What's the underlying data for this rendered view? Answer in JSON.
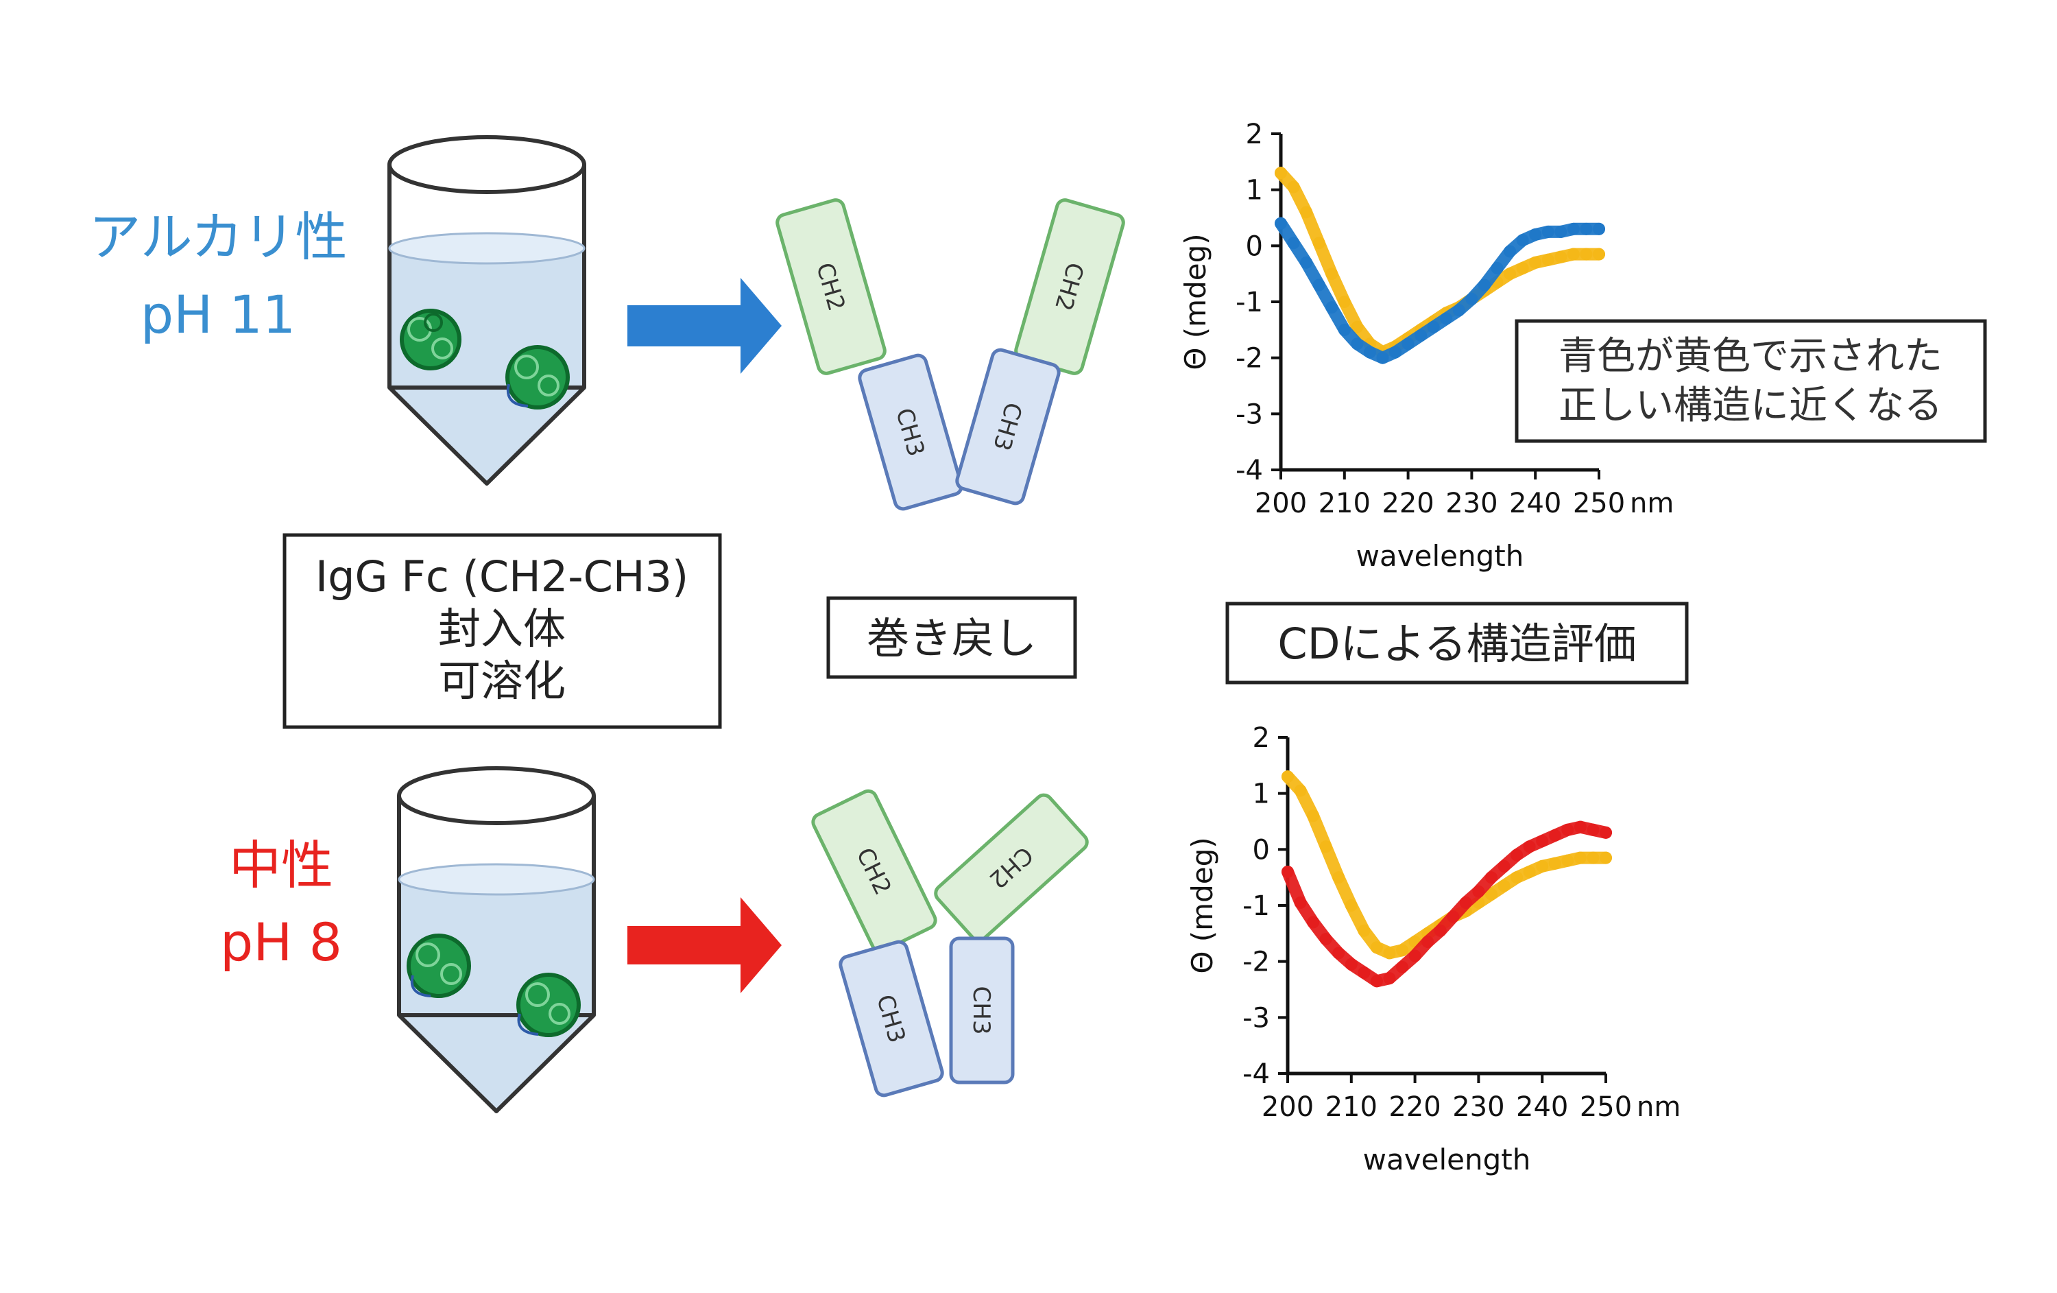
{
  "conditions": {
    "alkaline": {
      "name": "アルカリ性",
      "ph": "pH 11",
      "color": "#3a8fd0"
    },
    "neutral": {
      "name": "中性",
      "ph": "pH 8",
      "color": "#e8231f"
    }
  },
  "boxes": {
    "sample": [
      "IgG Fc (CH2-CH3)",
      "封入体",
      "可溶化"
    ],
    "refold": "巻き戻し",
    "cd_eval": "CDによる構造評価",
    "note": [
      "青色が黄色で示された",
      "正しい構造に近くなる"
    ]
  },
  "domains": {
    "ch2": "CH2",
    "ch3": "CH3"
  },
  "colors": {
    "ch2_fill": "#dff0da",
    "ch2_stroke": "#6bb36b",
    "ch3_fill": "#d9e4f4",
    "ch3_stroke": "#5a7ab8",
    "liquid": "#cfe0f0",
    "aggregate": "#1f9a4a",
    "blue_series": "#1f78c8",
    "yellow_series": "#f5b818",
    "red_series": "#e41d1d"
  },
  "chart_data": [
    {
      "type": "line",
      "xlabel": "wavelength",
      "ylabel": "Θ (mdeg)",
      "x_unit": "nm",
      "xlim": [
        200,
        250
      ],
      "ylim": [
        -4,
        2
      ],
      "xticks": [
        200,
        210,
        220,
        230,
        240,
        250
      ],
      "yticks": [
        2,
        1,
        0,
        -1,
        -2,
        -3,
        -4
      ],
      "series": [
        {
          "color": "#f5b818",
          "x": [
            200,
            202,
            204,
            206,
            208,
            210,
            212,
            214,
            216,
            218,
            220,
            222,
            224,
            226,
            228,
            230,
            232,
            234,
            236,
            238,
            240,
            242,
            244,
            246,
            248,
            250
          ],
          "y": [
            1.3,
            1.05,
            0.6,
            0.05,
            -0.5,
            -1.0,
            -1.45,
            -1.75,
            -1.9,
            -1.8,
            -1.65,
            -1.5,
            -1.35,
            -1.2,
            -1.1,
            -0.95,
            -0.8,
            -0.65,
            -0.5,
            -0.4,
            -0.3,
            -0.25,
            -0.2,
            -0.15,
            -0.15,
            -0.15
          ]
        },
        {
          "color": "#1f78c8",
          "x": [
            200,
            202,
            204,
            206,
            208,
            210,
            212,
            214,
            216,
            218,
            220,
            222,
            224,
            226,
            228,
            230,
            232,
            234,
            236,
            238,
            240,
            242,
            244,
            246,
            248,
            250
          ],
          "y": [
            0.4,
            0.05,
            -0.3,
            -0.7,
            -1.1,
            -1.5,
            -1.75,
            -1.9,
            -2.0,
            -1.9,
            -1.75,
            -1.6,
            -1.45,
            -1.3,
            -1.15,
            -0.95,
            -0.7,
            -0.4,
            -0.1,
            0.1,
            0.2,
            0.25,
            0.25,
            0.3,
            0.3,
            0.3
          ]
        }
      ]
    },
    {
      "type": "line",
      "xlabel": "wavelength",
      "ylabel": "Θ (mdeg)",
      "x_unit": "nm",
      "xlim": [
        200,
        250
      ],
      "ylim": [
        -4,
        2
      ],
      "xticks": [
        200,
        210,
        220,
        230,
        240,
        250
      ],
      "yticks": [
        2,
        1,
        0,
        -1,
        -2,
        -3,
        -4
      ],
      "series": [
        {
          "color": "#f5b818",
          "x": [
            200,
            202,
            204,
            206,
            208,
            210,
            212,
            214,
            216,
            218,
            220,
            222,
            224,
            226,
            228,
            230,
            232,
            234,
            236,
            238,
            240,
            242,
            244,
            246,
            248,
            250
          ],
          "y": [
            1.3,
            1.05,
            0.6,
            0.05,
            -0.5,
            -1.0,
            -1.45,
            -1.75,
            -1.85,
            -1.8,
            -1.65,
            -1.5,
            -1.35,
            -1.2,
            -1.1,
            -0.95,
            -0.8,
            -0.65,
            -0.5,
            -0.4,
            -0.3,
            -0.25,
            -0.2,
            -0.15,
            -0.15,
            -0.15
          ]
        },
        {
          "color": "#e41d1d",
          "x": [
            200,
            202,
            204,
            206,
            208,
            210,
            212,
            214,
            216,
            218,
            220,
            222,
            224,
            226,
            228,
            230,
            232,
            234,
            236,
            238,
            240,
            242,
            244,
            246,
            248,
            250
          ],
          "y": [
            -0.4,
            -0.95,
            -1.3,
            -1.6,
            -1.85,
            -2.05,
            -2.2,
            -2.35,
            -2.3,
            -2.1,
            -1.9,
            -1.65,
            -1.45,
            -1.2,
            -0.95,
            -0.75,
            -0.5,
            -0.3,
            -0.1,
            0.05,
            0.15,
            0.25,
            0.35,
            0.4,
            0.35,
            0.3
          ]
        }
      ]
    }
  ]
}
